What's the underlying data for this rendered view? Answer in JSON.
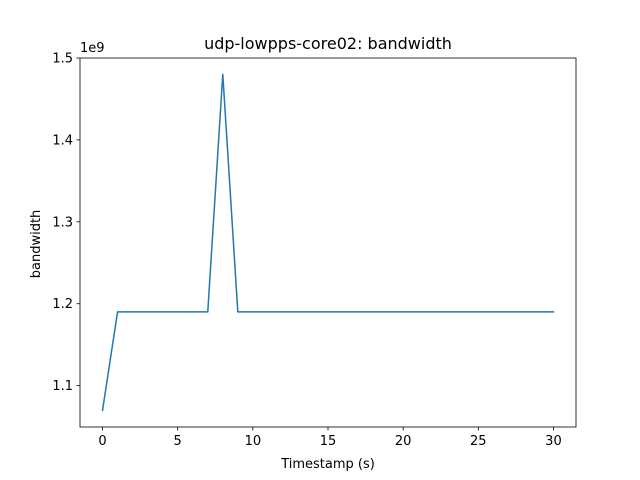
{
  "chart_data": {
    "type": "line",
    "title": "udp-lowpps-core02: bandwidth",
    "xlabel": "Timestamp (s)",
    "ylabel": "bandwidth",
    "y_offset_label": "1e9",
    "y_scale_factor": 1000000000,
    "xlim": [
      -1.5,
      31.5
    ],
    "ylim": [
      1.0495,
      1.5
    ],
    "x_ticks": [
      0,
      5,
      10,
      15,
      20,
      25,
      30
    ],
    "x_tick_labels": [
      "0",
      "5",
      "10",
      "15",
      "20",
      "25",
      "30"
    ],
    "y_ticks": [
      1.1,
      1.2,
      1.3,
      1.4,
      1.5
    ],
    "y_tick_labels": [
      "1.1",
      "1.2",
      "1.3",
      "1.4",
      "1.5"
    ],
    "grid": false,
    "series": [
      {
        "color": "#1f77b4",
        "x": [
          0,
          1,
          2,
          3,
          4,
          5,
          6,
          7,
          8,
          9,
          10,
          11,
          12,
          13,
          14,
          15,
          16,
          17,
          18,
          19,
          20,
          21,
          22,
          23,
          24,
          25,
          26,
          27,
          28,
          29,
          30
        ],
        "y": [
          1.07,
          1.19,
          1.19,
          1.19,
          1.19,
          1.19,
          1.19,
          1.19,
          1.48,
          1.19,
          1.19,
          1.19,
          1.19,
          1.19,
          1.19,
          1.19,
          1.19,
          1.19,
          1.19,
          1.19,
          1.19,
          1.19,
          1.19,
          1.19,
          1.19,
          1.19,
          1.19,
          1.19,
          1.19,
          1.19,
          1.19
        ]
      }
    ]
  }
}
